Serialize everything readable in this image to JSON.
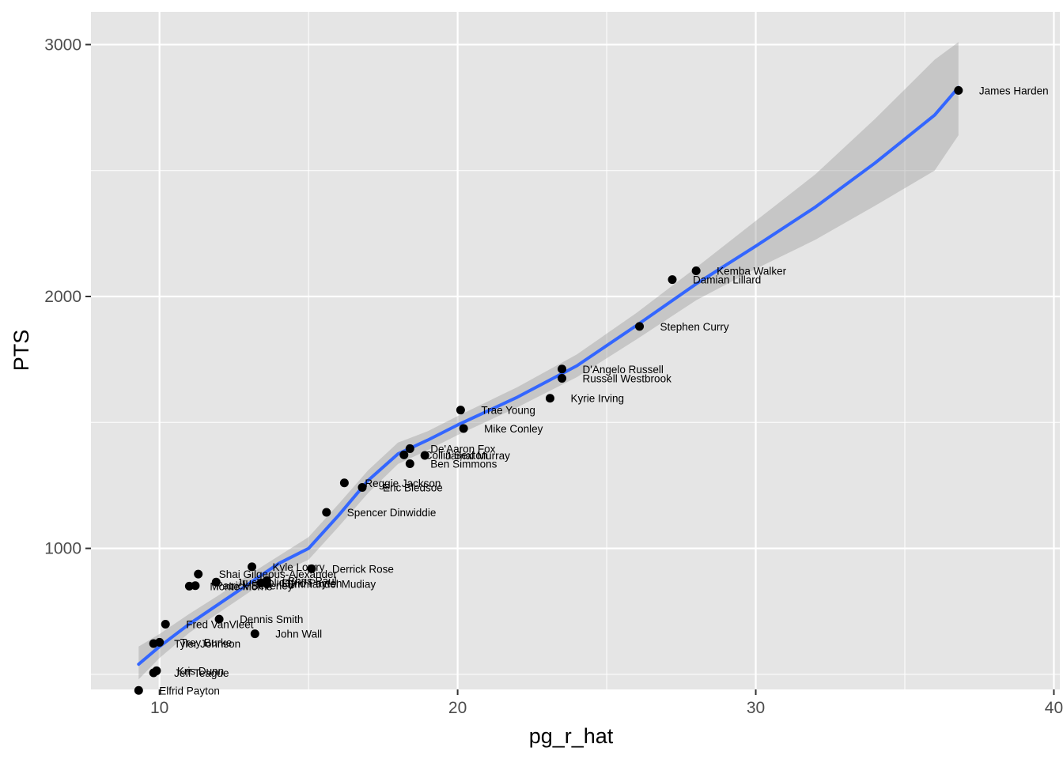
{
  "chart_data": {
    "type": "scatter",
    "xlabel": "pg_r_hat",
    "ylabel": "PTS",
    "xlim": [
      7.7,
      40.2
    ],
    "ylim": [
      440,
      3130
    ],
    "xticks": [
      10,
      20,
      30,
      40
    ],
    "yticks": [
      1000,
      2000,
      3000
    ],
    "grid": true,
    "colors": {
      "panel": "#e5e5e5",
      "grid": "#ffffff",
      "point": "#000000",
      "smooth_line": "#3366ff",
      "ribbon": "#999999"
    },
    "points": [
      {
        "name": "James Harden",
        "x": 36.8,
        "y": 2818
      },
      {
        "name": "Kemba Walker",
        "x": 28.0,
        "y": 2102
      },
      {
        "name": "Damian Lillard",
        "x": 27.2,
        "y": 2067
      },
      {
        "name": "Stephen Curry",
        "x": 26.1,
        "y": 1881
      },
      {
        "name": "D'Angelo Russell",
        "x": 23.5,
        "y": 1712
      },
      {
        "name": "Russell Westbrook",
        "x": 23.5,
        "y": 1675
      },
      {
        "name": "Kyrie Irving",
        "x": 23.1,
        "y": 1596
      },
      {
        "name": "Trae Young",
        "x": 20.1,
        "y": 1549
      },
      {
        "name": "Mike Conley",
        "x": 20.2,
        "y": 1476
      },
      {
        "name": "De'Aaron Fox",
        "x": 18.4,
        "y": 1396
      },
      {
        "name": "Collin Sexton",
        "x": 18.2,
        "y": 1371
      },
      {
        "name": "Jamal Murray",
        "x": 18.9,
        "y": 1369
      },
      {
        "name": "Ben Simmons",
        "x": 18.4,
        "y": 1336
      },
      {
        "name": "Reggie Jackson",
        "x": 16.2,
        "y": 1260
      },
      {
        "name": "Eric Bledsoe",
        "x": 16.8,
        "y": 1242
      },
      {
        "name": "Spencer Dinwiddie",
        "x": 15.6,
        "y": 1143
      },
      {
        "name": "Derrick Rose",
        "x": 15.1,
        "y": 919
      },
      {
        "name": "Kyle Lowry",
        "x": 13.1,
        "y": 927
      },
      {
        "name": "Chris Paul",
        "x": 13.6,
        "y": 872
      },
      {
        "name": "Shai Gilgeous-Alexander",
        "x": 11.3,
        "y": 898
      },
      {
        "name": "Emmanuel Mudiay",
        "x": 13.6,
        "y": 859
      },
      {
        "name": "Elfrid Payton",
        "x": 13.4,
        "y": 862
      },
      {
        "name": "Jrue Holiday",
        "x": 11.9,
        "y": 866
      },
      {
        "name": "Monte Morris",
        "x": 11.0,
        "y": 850
      },
      {
        "name": "Patrick Beverley",
        "x": 11.2,
        "y": 852
      },
      {
        "name": "Dennis Smith",
        "x": 12.0,
        "y": 719
      },
      {
        "name": "Fred VanVleet",
        "x": 10.2,
        "y": 699
      },
      {
        "name": "John Wall",
        "x": 13.2,
        "y": 661
      },
      {
        "name": "Trey Burke",
        "x": 10.0,
        "y": 627
      },
      {
        "name": "Tyler Johnson",
        "x": 9.8,
        "y": 622
      },
      {
        "name": "Kris Dunn",
        "x": 9.9,
        "y": 514
      },
      {
        "name": "Jeff Teague",
        "x": 9.8,
        "y": 506
      },
      {
        "name": "Elfrid Payton",
        "x": 9.3,
        "y": 436
      }
    ],
    "smooth": [
      {
        "x": 9.3,
        "y": 540,
        "lo": 480,
        "hi": 610
      },
      {
        "x": 10.0,
        "y": 610,
        "lo": 565,
        "hi": 660
      },
      {
        "x": 11.0,
        "y": 700,
        "lo": 665,
        "hi": 740
      },
      {
        "x": 12.0,
        "y": 780,
        "lo": 745,
        "hi": 815
      },
      {
        "x": 13.0,
        "y": 860,
        "lo": 825,
        "hi": 895
      },
      {
        "x": 14.0,
        "y": 940,
        "lo": 900,
        "hi": 970
      },
      {
        "x": 15.0,
        "y": 1000,
        "lo": 955,
        "hi": 1045
      },
      {
        "x": 16.0,
        "y": 1130,
        "lo": 1085,
        "hi": 1175
      },
      {
        "x": 17.0,
        "y": 1270,
        "lo": 1220,
        "hi": 1310
      },
      {
        "x": 18.0,
        "y": 1375,
        "lo": 1335,
        "hi": 1420
      },
      {
        "x": 19.0,
        "y": 1430,
        "lo": 1390,
        "hi": 1465
      },
      {
        "x": 20.0,
        "y": 1490,
        "lo": 1450,
        "hi": 1525
      },
      {
        "x": 22.0,
        "y": 1600,
        "lo": 1560,
        "hi": 1640
      },
      {
        "x": 24.0,
        "y": 1725,
        "lo": 1680,
        "hi": 1770
      },
      {
        "x": 26.0,
        "y": 1885,
        "lo": 1830,
        "hi": 1935
      },
      {
        "x": 28.0,
        "y": 2050,
        "lo": 1985,
        "hi": 2115
      },
      {
        "x": 30.0,
        "y": 2200,
        "lo": 2110,
        "hi": 2300
      },
      {
        "x": 32.0,
        "y": 2355,
        "lo": 2225,
        "hi": 2485
      },
      {
        "x": 34.0,
        "y": 2530,
        "lo": 2360,
        "hi": 2705
      },
      {
        "x": 36.0,
        "y": 2720,
        "lo": 2500,
        "hi": 2940
      },
      {
        "x": 36.8,
        "y": 2830,
        "lo": 2640,
        "hi": 3010
      }
    ]
  }
}
